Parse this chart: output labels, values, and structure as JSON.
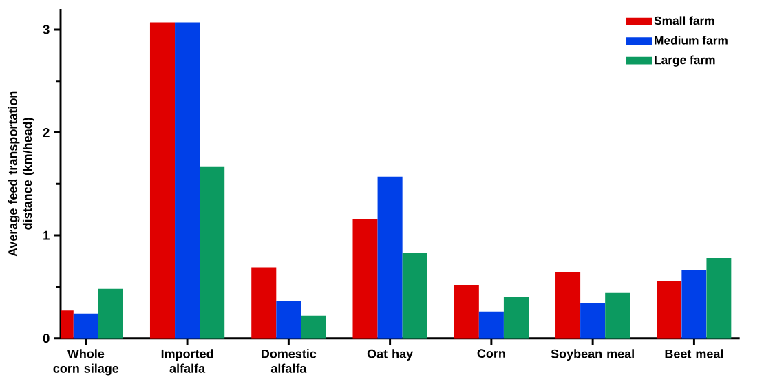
{
  "chart_data": {
    "type": "bar",
    "ylabel": "Average feed transportation distance (km/head)",
    "categories": [
      "Whole corn silage",
      "Imported alfalfa",
      "Domestic alfalfa",
      "Oat hay",
      "Corn",
      "Soybean meal",
      "Beet meal"
    ],
    "series": [
      {
        "name": "Small farm",
        "color": "#e00000",
        "values": [
          0.27,
          3.07,
          0.69,
          1.16,
          0.52,
          0.64,
          0.56
        ]
      },
      {
        "name": "Medium farm",
        "color": "#0040e8",
        "values": [
          0.24,
          3.07,
          0.36,
          1.57,
          0.26,
          0.34,
          0.66
        ]
      },
      {
        "name": "Large farm",
        "color": "#0c9a60",
        "values": [
          0.48,
          1.67,
          0.22,
          0.83,
          0.4,
          0.44,
          0.78
        ]
      }
    ],
    "ylim": [
      0,
      3.2
    ],
    "yticks": [
      0,
      {
        "value": 0.5,
        "label": null
      },
      1,
      {
        "value": 1.5,
        "label": null
      },
      2,
      {
        "value": 2.5,
        "label": null
      },
      3
    ],
    "grid": false,
    "legend": "top right"
  }
}
